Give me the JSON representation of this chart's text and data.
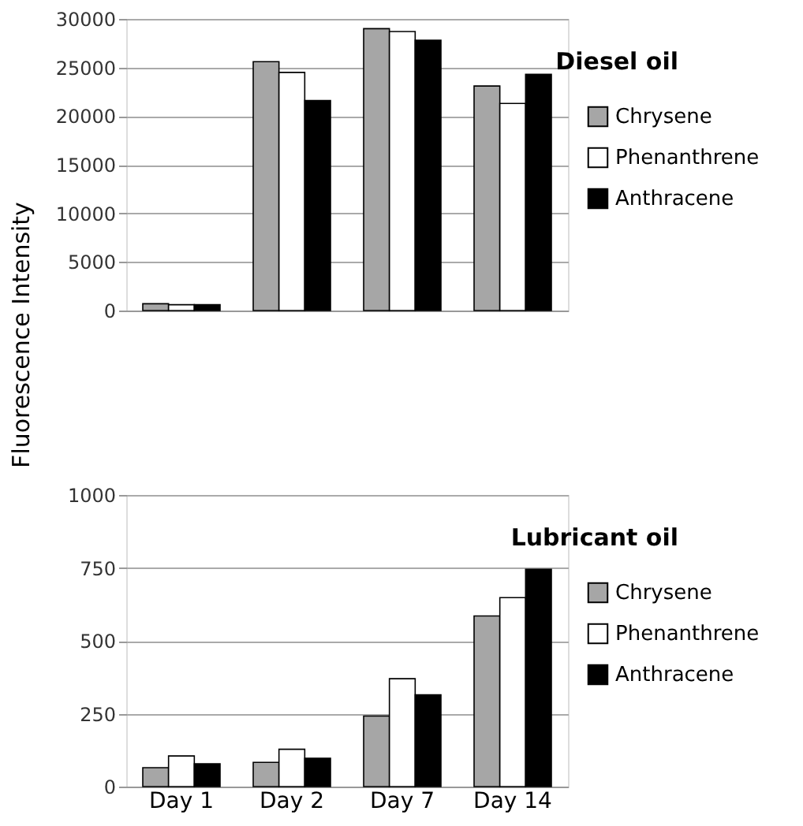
{
  "chart_data": [
    {
      "type": "bar",
      "title": "Diesel oil",
      "ylabel": "Fluorescence Intensity",
      "categories": [
        null,
        null,
        null,
        null
      ],
      "tick_labels": "y",
      "ylim": [
        0,
        30000
      ],
      "yticks": [
        0,
        5000,
        10000,
        15000,
        20000,
        25000,
        30000
      ],
      "grid": "y",
      "legend": "right",
      "series": [
        {
          "name": "Chrysene",
          "color": "#a6a6a6",
          "values": [
            700,
            25600,
            29000,
            23100
          ]
        },
        {
          "name": "Phenanthrene",
          "color": "#ffffff",
          "values": [
            600,
            24500,
            28700,
            21300
          ]
        },
        {
          "name": "Anthracene",
          "color": "#000000",
          "values": [
            600,
            21600,
            27800,
            24300
          ]
        }
      ]
    },
    {
      "type": "bar",
      "title": "Lubricant oil",
      "categories": [
        "Day 1",
        "Day 2",
        "Day 7",
        "Day 14"
      ],
      "ylim": [
        0,
        1000
      ],
      "yticks": [
        0,
        250,
        500,
        750,
        1000
      ],
      "grid": "y",
      "legend": "right",
      "series": [
        {
          "name": "Chrysene",
          "color": "#a6a6a6",
          "values": [
            65,
            83,
            242,
            585
          ]
        },
        {
          "name": "Phenanthrene",
          "color": "#ffffff",
          "values": [
            105,
            128,
            370,
            648
          ]
        },
        {
          "name": "Anthracene",
          "color": "#000000",
          "values": [
            78,
            97,
            315,
            745
          ]
        }
      ]
    }
  ]
}
